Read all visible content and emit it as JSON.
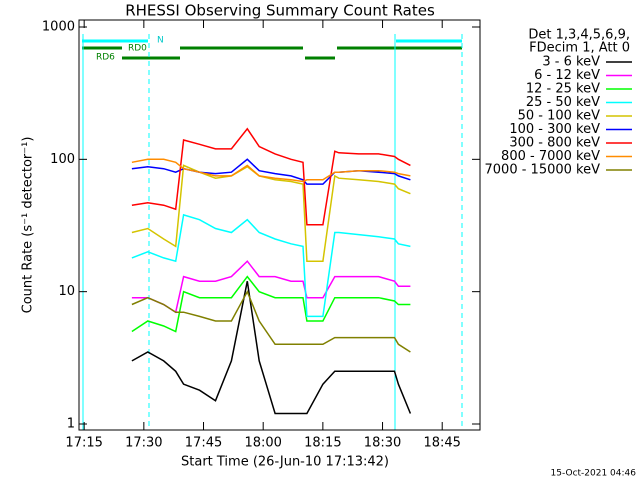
{
  "chart_data": {
    "type": "line",
    "title": "RHESSI Observing Summary Count Rates",
    "x_label": "Start Time (26-Jun-10 17:13:42)",
    "y_label": "Count Rate (s⁻¹ detector⁻¹)",
    "legend_header": [
      "Det 1,3,4,5,6,9,",
      "FDecim 1, Att 0"
    ],
    "footer": "15-Oct-2021 04:46",
    "annotations": [
      "N",
      "RD0",
      "RD6"
    ],
    "log_y": true,
    "xlim": [
      "17:13:42",
      "18:54:30"
    ],
    "xticks": [
      "17:15",
      "17:30",
      "17:45",
      "18:00",
      "18:15",
      "18:30",
      "18:45"
    ],
    "ylim": [
      1,
      1000
    ],
    "yticks": [
      1,
      10,
      100,
      1000
    ],
    "x": [
      "17:27",
      "17:31",
      "17:35",
      "17:38",
      "17:40",
      "17:44",
      "17:48",
      "17:52",
      "17:56",
      "17:59",
      "18:03",
      "18:07",
      "18:10",
      "18:11",
      "18:15",
      "18:18",
      "18:19",
      "18:24",
      "18:29",
      "18:33",
      "18:34",
      "18:37"
    ],
    "series": [
      {
        "name": "3 - 6 keV",
        "color": "#000000",
        "values": [
          3,
          3.5,
          3,
          2.5,
          2,
          1.8,
          1.5,
          3,
          12,
          3,
          1.2,
          1.2,
          1.2,
          1.2,
          2,
          2.5,
          2.5,
          2.5,
          2.5,
          2.5,
          2,
          1.2
        ]
      },
      {
        "name": "6 - 12 keV",
        "color": "#ff00ff",
        "values": [
          9,
          9,
          8,
          7,
          13,
          12,
          12,
          13,
          17,
          13,
          13,
          12,
          12,
          9,
          9,
          13,
          13,
          13,
          13,
          12,
          11,
          11
        ]
      },
      {
        "name": "12 - 25 keV",
        "color": "#00ff00",
        "values": [
          5,
          6,
          5.5,
          5,
          10,
          9,
          9,
          9,
          13,
          10,
          9,
          9,
          9,
          6,
          6,
          9,
          9,
          9,
          9,
          8.5,
          8,
          8
        ]
      },
      {
        "name": "25 - 50 keV",
        "color": "#00ffff",
        "values": [
          18,
          20,
          18,
          17,
          38,
          35,
          30,
          28,
          35,
          28,
          25,
          23,
          22,
          6.5,
          6.5,
          28,
          28,
          27,
          26,
          25,
          23,
          22
        ]
      },
      {
        "name": "50 - 100 keV",
        "color": "#d4c400",
        "values": [
          28,
          30,
          25,
          22,
          90,
          80,
          72,
          75,
          88,
          75,
          70,
          68,
          65,
          17,
          17,
          75,
          72,
          70,
          68,
          65,
          60,
          55
        ]
      },
      {
        "name": "100 - 300 keV",
        "color": "#0000ff",
        "values": [
          85,
          88,
          85,
          80,
          85,
          80,
          78,
          80,
          100,
          82,
          78,
          75,
          70,
          65,
          65,
          80,
          80,
          82,
          80,
          78,
          75,
          70
        ]
      },
      {
        "name": "300 - 800 keV",
        "color": "#ff0000",
        "values": [
          45,
          47,
          45,
          42,
          140,
          130,
          120,
          120,
          170,
          125,
          110,
          100,
          95,
          32,
          32,
          115,
          112,
          110,
          110,
          105,
          100,
          90
        ]
      },
      {
        "name": "800 - 7000 keV",
        "color": "#ff8c00",
        "values": [
          95,
          100,
          100,
          95,
          85,
          80,
          75,
          75,
          90,
          75,
          72,
          70,
          68,
          70,
          70,
          80,
          80,
          82,
          82,
          80,
          78,
          75
        ]
      },
      {
        "name": "7000 - 15000 keV",
        "color": "#808000",
        "values": [
          8,
          9,
          8,
          7,
          7,
          6.5,
          6,
          6,
          10,
          6,
          4,
          4,
          4,
          4,
          4,
          4.5,
          4.5,
          4.5,
          4.5,
          4.5,
          4,
          3.5
        ]
      }
    ]
  }
}
